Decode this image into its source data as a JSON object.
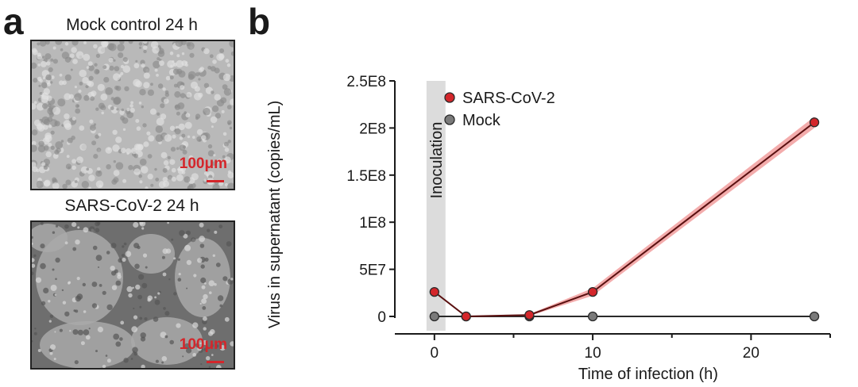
{
  "panel_a": {
    "letter": "a",
    "mock_caption": "Mock control 24 h",
    "sars_caption": "SARS-CoV-2 24 h",
    "scale_label_mock": "100μm",
    "scale_label_sars": "100μm"
  },
  "panel_b": {
    "letter": "b"
  },
  "colors": {
    "sars": "#d4262b",
    "mock": "#7a7a7a",
    "band": "#f2a3a3",
    "shade": "#dcdcdc"
  },
  "chart_data": {
    "type": "line",
    "xlabel": "Time of infection (h)",
    "ylabel": "Virus in supernatant (copies/mL)",
    "xlim": [
      -2.5,
      25
    ],
    "ylim": [
      0,
      250000000
    ],
    "xticks": [
      0,
      10,
      20
    ],
    "xtick_labels": [
      "0",
      "10",
      "20"
    ],
    "yticks": [
      0,
      50000000,
      100000000,
      150000000,
      200000000,
      250000000
    ],
    "ytick_labels": [
      "0",
      "5E7",
      "1E8",
      "1.5E8",
      "2E8",
      "2.5E8"
    ],
    "annotation": {
      "text": "Inoculation",
      "x_start": -0.5,
      "x_end": 0.7
    },
    "legend_position": "top-left",
    "series": [
      {
        "name": "SARS-CoV-2",
        "color": "#d4262b",
        "x": [
          0,
          2,
          6,
          10,
          24
        ],
        "y": [
          26000000,
          0,
          1500000,
          26000000,
          206000000
        ],
        "err": [
          0,
          0,
          1000000,
          4000000,
          6000000
        ]
      },
      {
        "name": "Mock",
        "color": "#7a7a7a",
        "x": [
          0,
          2,
          6,
          10,
          24
        ],
        "y": [
          0,
          0,
          0,
          0,
          0
        ],
        "err": [
          0,
          0,
          0,
          0,
          0
        ]
      }
    ]
  }
}
